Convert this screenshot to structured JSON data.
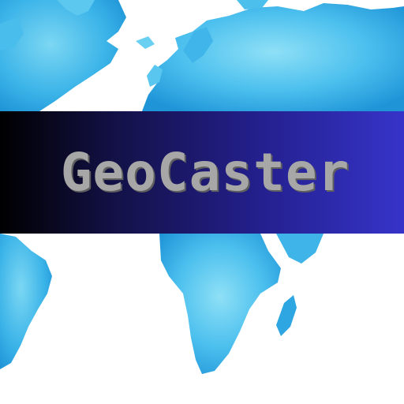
{
  "title": "GeoCaster",
  "colors": {
    "background": "#ffffff",
    "map_light": "#6fd0f0",
    "map_mid": "#3bb6ea",
    "map_dark": "#1e95d8",
    "banner_start": "#000000",
    "banner_end": "#3634c9",
    "title_text": "#a7a7a7"
  },
  "icons": {
    "background": "world-map-icon"
  }
}
